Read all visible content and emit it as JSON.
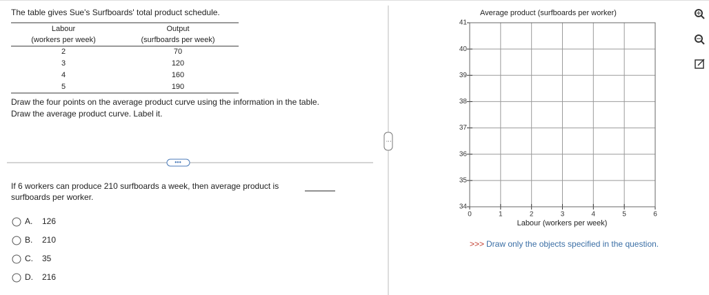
{
  "header": {
    "intro": "The table gives Sue's Surfboards' total product schedule."
  },
  "table": {
    "headers": [
      [
        "Labour",
        "(workers per week)"
      ],
      [
        "Output",
        "(surfboards per week)"
      ]
    ],
    "rows": [
      [
        2,
        70
      ],
      [
        3,
        120
      ],
      [
        4,
        160
      ],
      [
        5,
        190
      ]
    ]
  },
  "instructions": [
    "Draw the four points on the average product curve using the information in the table.",
    "Draw the average product curve. Label it."
  ],
  "question": {
    "lines": [
      "If 6 workers can produce 210 surfboards a week, then average product is",
      "surfboards per worker."
    ],
    "options": [
      {
        "letter": "A.",
        "text": 126
      },
      {
        "letter": "B.",
        "text": 210
      },
      {
        "letter": "C.",
        "text": 35
      },
      {
        "letter": "D.",
        "text": 216
      }
    ]
  },
  "graph": {
    "title": "Average product (surfboards per worker)",
    "xlabel": "Labour (workers per week)",
    "xlim": [
      0,
      6
    ],
    "ylim": [
      34,
      41
    ],
    "xticks": [
      0,
      1,
      2,
      3,
      4,
      5,
      6
    ],
    "yticks": [
      34,
      35,
      36,
      37,
      38,
      39,
      40,
      41
    ],
    "grid": true
  },
  "note": {
    "prefix": ">>>",
    "text": "Draw only the objects specified in the question."
  }
}
